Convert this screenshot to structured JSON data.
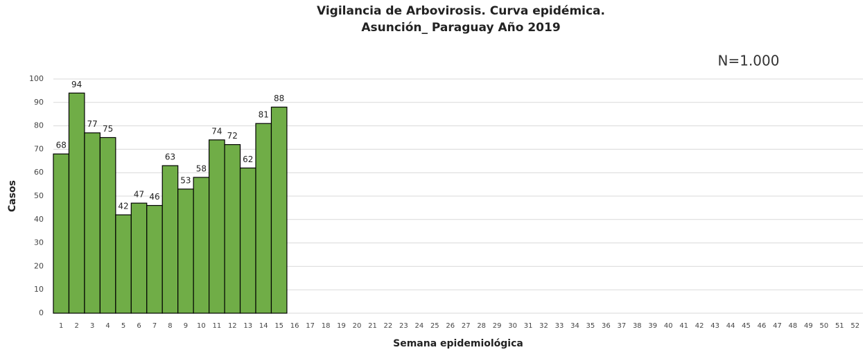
{
  "chart_data": {
    "type": "bar",
    "title": [
      "Vigilancia de Arbovirosis. Curva epidémica.",
      "Asunción_ Paraguay Año 2019"
    ],
    "annotation": "N=1.000",
    "x_label": "Semana epidemiológica",
    "y_label": "Casos",
    "categories": [
      "1",
      "2",
      "3",
      "4",
      "5",
      "6",
      "7",
      "8",
      "9",
      "10",
      "11",
      "12",
      "13",
      "14",
      "15",
      "16",
      "17",
      "18",
      "19",
      "20",
      "21",
      "22",
      "23",
      "24",
      "25",
      "26",
      "27",
      "28",
      "29",
      "30",
      "31",
      "32",
      "33",
      "34",
      "35",
      "36",
      "37",
      "38",
      "39",
      "40",
      "41",
      "42",
      "43",
      "44",
      "45",
      "46",
      "47",
      "48",
      "49",
      "50",
      "51",
      "52"
    ],
    "values": [
      68,
      94,
      77,
      75,
      42,
      47,
      46,
      63,
      53,
      58,
      74,
      72,
      62,
      81,
      88,
      null,
      null,
      null,
      null,
      null,
      null,
      null,
      null,
      null,
      null,
      null,
      null,
      null,
      null,
      null,
      null,
      null,
      null,
      null,
      null,
      null,
      null,
      null,
      null,
      null,
      null,
      null,
      null,
      null,
      null,
      null,
      null,
      null,
      null,
      null,
      null,
      null
    ],
    "color": "#70ad47",
    "ylim": [
      0,
      100
    ],
    "yticks": [
      0,
      10,
      20,
      30,
      40,
      50,
      60,
      70,
      80,
      90,
      100
    ],
    "grid": true
  }
}
